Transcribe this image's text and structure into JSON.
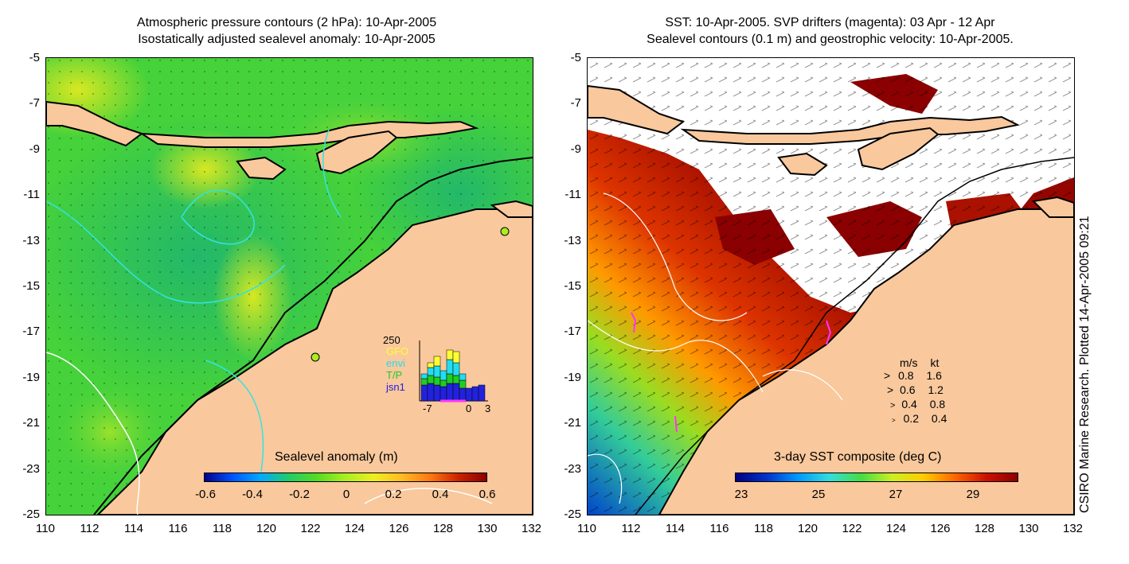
{
  "left": {
    "title_line1": "Atmospheric pressure contours (2 hPa): 10-Apr-2005",
    "title_line2": "Isostatically adjusted sealevel anomaly: 10-Apr-2005",
    "y_ticks": [
      "-5",
      "-7",
      "-9",
      "-11",
      "-13",
      "-15",
      "-17",
      "-19",
      "-21",
      "-23",
      "-25"
    ],
    "x_ticks": [
      "110",
      "112",
      "114",
      "116",
      "118",
      "120",
      "122",
      "124",
      "126",
      "128",
      "130",
      "132"
    ],
    "colorbar_label": "Sealevel anomaly (m)",
    "colorbar_ticks": [
      "-0.6",
      "-0.4",
      "-0.2",
      "0",
      "0.2",
      "0.4",
      "0.6"
    ],
    "inset": {
      "max_label": "250",
      "x_ticks": [
        "-7",
        "0",
        "3"
      ],
      "legend": [
        {
          "label": "GFO",
          "color": "#ffff33"
        },
        {
          "label": "envi",
          "color": "#22ddee"
        },
        {
          "label": "T/P",
          "color": "#22cc22"
        },
        {
          "label": "jsn1",
          "color": "#2222dd"
        }
      ]
    }
  },
  "right": {
    "title_line1": "SST: 10-Apr-2005. SVP drifters (magenta): 03 Apr - 12 Apr",
    "title_line2": "Sealevel contours (0.1 m) and geostrophic velocity: 10-Apr-2005.",
    "y_ticks": [
      "-5",
      "-7",
      "-9",
      "-11",
      "-13",
      "-15",
      "-17",
      "-19",
      "-21",
      "-23",
      "-25"
    ],
    "x_ticks": [
      "110",
      "112",
      "114",
      "116",
      "118",
      "120",
      "122",
      "124",
      "126",
      "128",
      "130",
      "132"
    ],
    "colorbar_label": "3-day SST composite (deg C)",
    "colorbar_ticks": [
      "23",
      "25",
      "27",
      "29"
    ],
    "velocity_header": {
      "ms": "m/s",
      "kt": "kt"
    },
    "velocity_legend": [
      {
        "ms": "0.8",
        "kt": "1.6"
      },
      {
        "ms": "0.6",
        "kt": "1.2"
      },
      {
        "ms": "0.4",
        "kt": "0.8"
      },
      {
        "ms": "0.2",
        "kt": "0.4"
      }
    ]
  },
  "side_caption": "CSIRO Marine Research. Plotted 14-Apr-2005 09:21",
  "colors": {
    "land": "#f9c89c",
    "sla_colormap": [
      "#00008b",
      "#0055ff",
      "#00aaff",
      "#22cc66",
      "#55dd22",
      "#aaee22",
      "#eeee22",
      "#ffbb22",
      "#ff7711",
      "#cc2200",
      "#8b0000"
    ],
    "sst_colormap": [
      "#000080",
      "#0033cc",
      "#0099ff",
      "#33dddd",
      "#44dd44",
      "#ccee22",
      "#ffcc00",
      "#ff6600",
      "#cc1100",
      "#8b0000"
    ]
  }
}
